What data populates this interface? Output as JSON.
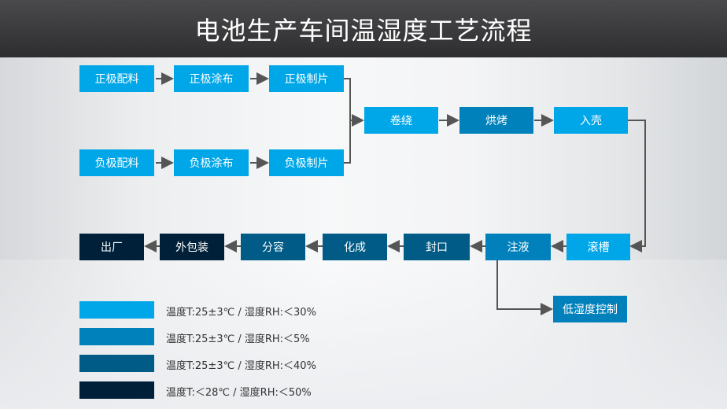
{
  "title": "电池生产车间温湿度工艺流程",
  "colors": {
    "level1": "#00a7e8",
    "level2": "#0081bb",
    "level3": "#005b86",
    "level4": "#00203a"
  },
  "steps": {
    "s1": "正极配料",
    "s2": "正极涂布",
    "s3": "正极制片",
    "s4": "负极配料",
    "s5": "负极涂布",
    "s6": "负极制片",
    "s7": "卷绕",
    "s8": "烘烤",
    "s9": "入壳",
    "s10": "滚槽",
    "s11": "注液",
    "s12": "封口",
    "s13": "化成",
    "s14": "分容",
    "s15": "外包装",
    "s16": "出厂",
    "s17": "低湿度控制"
  },
  "legend": [
    {
      "text": "温度T:25±3℃  /  湿度RH:＜30%"
    },
    {
      "text": "温度T:25±3℃  /  湿度RH:＜5%"
    },
    {
      "text": "温度T:25±3℃  /  湿度RH:＜40%"
    },
    {
      "text": "温度T:＜28℃  /  湿度RH:＜50%"
    }
  ]
}
